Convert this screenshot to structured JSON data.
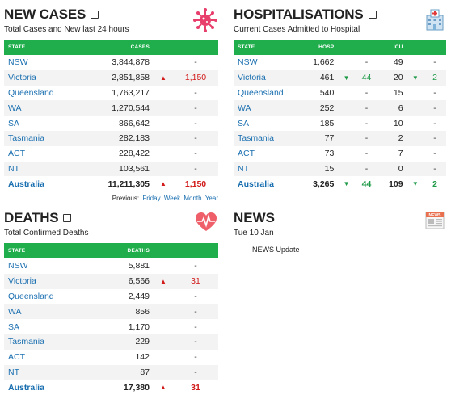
{
  "new_cases": {
    "title": "NEW CASES",
    "subtitle": "Total Cases and New last 24 hours",
    "headers": {
      "state": "STATE",
      "cases": "CASES"
    },
    "rows": [
      {
        "state": "NSW",
        "cases": "3,844,878",
        "change": "-",
        "dir": "none"
      },
      {
        "state": "Victoria",
        "cases": "2,851,858",
        "change": "1,150",
        "dir": "up"
      },
      {
        "state": "Queensland",
        "cases": "1,763,217",
        "change": "-",
        "dir": "none"
      },
      {
        "state": "WA",
        "cases": "1,270,544",
        "change": "-",
        "dir": "none"
      },
      {
        "state": "SA",
        "cases": "866,642",
        "change": "-",
        "dir": "none"
      },
      {
        "state": "Tasmania",
        "cases": "282,183",
        "change": "-",
        "dir": "none"
      },
      {
        "state": "ACT",
        "cases": "228,422",
        "change": "-",
        "dir": "none"
      },
      {
        "state": "NT",
        "cases": "103,561",
        "change": "-",
        "dir": "none"
      }
    ],
    "total": {
      "state": "Australia",
      "cases": "11,211,305",
      "change": "1,150",
      "dir": "up"
    },
    "previous": {
      "label": "Previous:",
      "links": [
        "Friday",
        "Week",
        "Month",
        "Year"
      ]
    }
  },
  "hospitalisations": {
    "title": "HOSPITALISATIONS",
    "subtitle": "Current Cases Admitted to Hospital",
    "headers": {
      "state": "STATE",
      "hosp": "HOSP",
      "icu": "ICU"
    },
    "rows": [
      {
        "state": "NSW",
        "hosp": "1,662",
        "hosp_change": "-",
        "hosp_dir": "none",
        "icu": "49",
        "icu_change": "-",
        "icu_dir": "none"
      },
      {
        "state": "Victoria",
        "hosp": "461",
        "hosp_change": "44",
        "hosp_dir": "down",
        "icu": "20",
        "icu_change": "2",
        "icu_dir": "down"
      },
      {
        "state": "Queensland",
        "hosp": "540",
        "hosp_change": "-",
        "hosp_dir": "none",
        "icu": "15",
        "icu_change": "-",
        "icu_dir": "none"
      },
      {
        "state": "WA",
        "hosp": "252",
        "hosp_change": "-",
        "hosp_dir": "none",
        "icu": "6",
        "icu_change": "-",
        "icu_dir": "none"
      },
      {
        "state": "SA",
        "hosp": "185",
        "hosp_change": "-",
        "hosp_dir": "none",
        "icu": "10",
        "icu_change": "-",
        "icu_dir": "none"
      },
      {
        "state": "Tasmania",
        "hosp": "77",
        "hosp_change": "-",
        "hosp_dir": "none",
        "icu": "2",
        "icu_change": "-",
        "icu_dir": "none"
      },
      {
        "state": "ACT",
        "hosp": "73",
        "hosp_change": "-",
        "hosp_dir": "none",
        "icu": "7",
        "icu_change": "-",
        "icu_dir": "none"
      },
      {
        "state": "NT",
        "hosp": "15",
        "hosp_change": "-",
        "hosp_dir": "none",
        "icu": "0",
        "icu_change": "-",
        "icu_dir": "none"
      }
    ],
    "total": {
      "state": "Australia",
      "hosp": "3,265",
      "hosp_change": "44",
      "hosp_dir": "down",
      "icu": "109",
      "icu_change": "2",
      "icu_dir": "down"
    }
  },
  "deaths": {
    "title": "DEATHS",
    "subtitle": "Total Confirmed Deaths",
    "headers": {
      "state": "STATE",
      "deaths": "DEATHS"
    },
    "rows": [
      {
        "state": "NSW",
        "deaths": "5,881",
        "change": "-",
        "dir": "none"
      },
      {
        "state": "Victoria",
        "deaths": "6,566",
        "change": "31",
        "dir": "up"
      },
      {
        "state": "Queensland",
        "deaths": "2,449",
        "change": "-",
        "dir": "none"
      },
      {
        "state": "WA",
        "deaths": "856",
        "change": "-",
        "dir": "none"
      },
      {
        "state": "SA",
        "deaths": "1,170",
        "change": "-",
        "dir": "none"
      },
      {
        "state": "Tasmania",
        "deaths": "229",
        "change": "-",
        "dir": "none"
      },
      {
        "state": "ACT",
        "deaths": "142",
        "change": "-",
        "dir": "none"
      },
      {
        "state": "NT",
        "deaths": "87",
        "change": "-",
        "dir": "none"
      }
    ],
    "total": {
      "state": "Australia",
      "deaths": "17,380",
      "change": "31",
      "dir": "up"
    }
  },
  "news": {
    "title": "NEWS",
    "date": "Tue 10 Jan",
    "items": [
      "NEWS Update"
    ],
    "icon_label": "NEWS"
  },
  "icons": {
    "new_cases": "virus-icon",
    "hospitalisations": "hospital-icon",
    "deaths": "heart-monitor-icon",
    "news": "newspaper-icon",
    "external": "external-link-icon"
  },
  "colors": {
    "header_green": "#1fae4b",
    "link_blue": "#1a6fb0",
    "up_red": "#d21b1b",
    "down_green": "#1f9a48",
    "virus_pink": "#e83e6c"
  }
}
